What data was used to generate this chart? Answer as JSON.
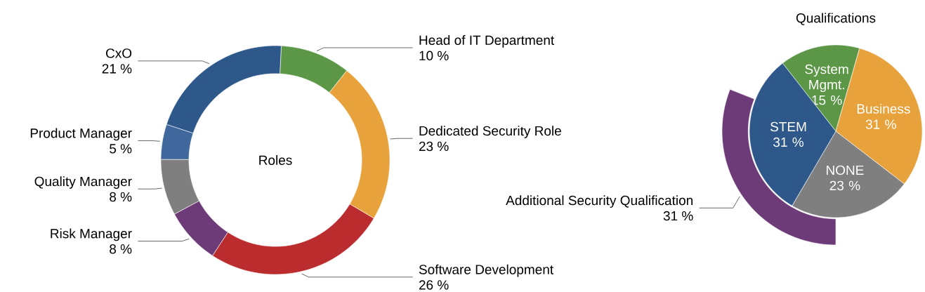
{
  "chart_data": [
    {
      "type": "donut",
      "title": "Roles",
      "categories": [
        "Head of IT Department",
        "Dedicated Security Role",
        "Software Development",
        "Risk Manager",
        "Quality Manager",
        "Product Manager",
        "CxO"
      ],
      "values": [
        10,
        23,
        26,
        8,
        8,
        5,
        21
      ],
      "colors": [
        "#5c9747",
        "#e8a23c",
        "#bb2c2e",
        "#6e3b79",
        "#7f7f7f",
        "#41689c",
        "#2e578a"
      ],
      "value_labels": [
        "10 %",
        "23 %",
        "26 %",
        "8 %",
        "8 %",
        "5 %",
        "21 %"
      ]
    },
    {
      "type": "pie",
      "title": "Qualifications",
      "categories": [
        "System Mgmt.",
        "Business",
        "NONE",
        "STEM"
      ],
      "values": [
        15,
        31,
        23,
        31
      ],
      "colors": [
        "#5c9747",
        "#e8a23c",
        "#7f7f7f",
        "#2e578a"
      ],
      "value_labels": [
        "15 %",
        "31 %",
        "23 %",
        "31 %"
      ]
    },
    {
      "type": "other",
      "categories": [
        "Additional Security Qualification"
      ],
      "values": [
        31
      ],
      "colors": [
        "#6e3b79"
      ],
      "value_labels": [
        "31 %"
      ]
    }
  ]
}
